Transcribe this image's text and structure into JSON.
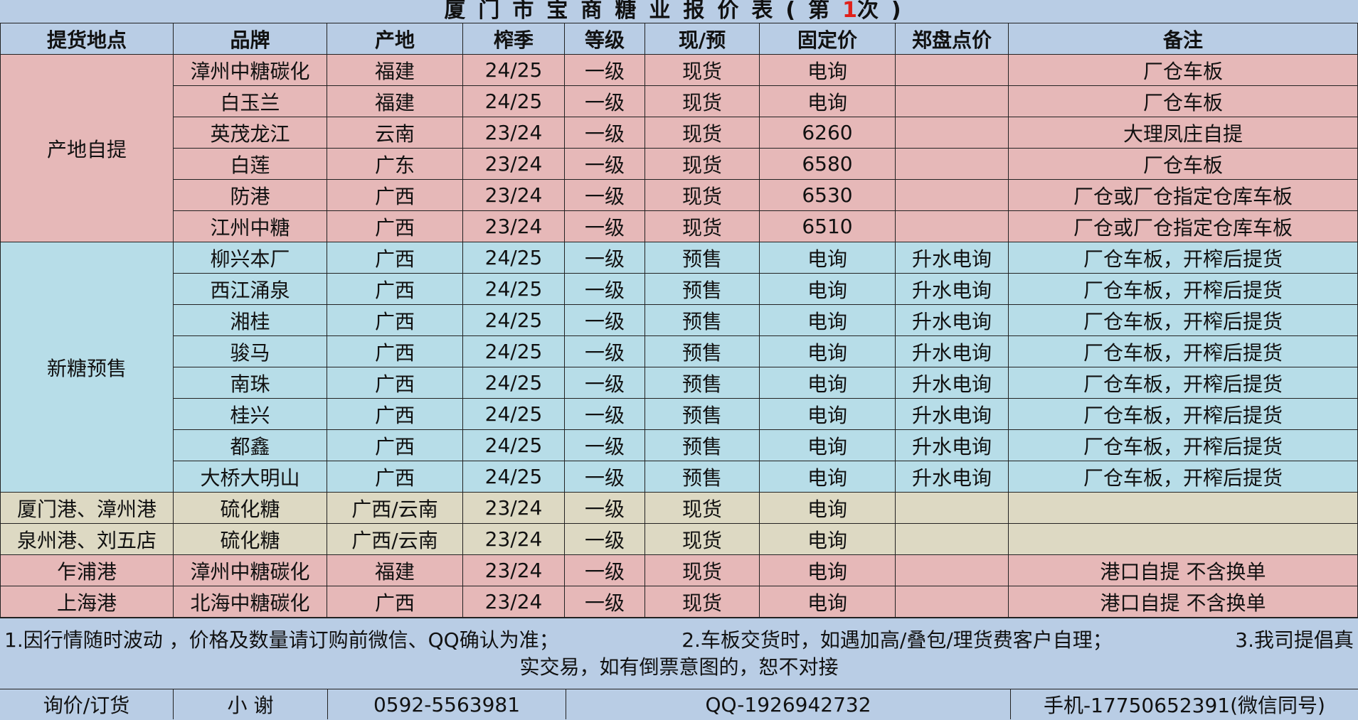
{
  "title": {
    "prefix": "厦门市宝商糖业报价表(第",
    "number": "1",
    "suffix": "次)",
    "number_color": "#e0201a"
  },
  "headers": [
    "提货地点",
    "品牌",
    "产地",
    "榨季",
    "等级",
    "现/预",
    "固定价",
    "郑盘点价",
    "备注"
  ],
  "groups": [
    {
      "location": "产地自提",
      "color": "pink",
      "rows": [
        [
          "漳州中糖碳化",
          "福建",
          "24/25",
          "一级",
          "现货",
          "电询",
          "",
          "厂仓车板"
        ],
        [
          "白玉兰",
          "福建",
          "24/25",
          "一级",
          "现货",
          "电询",
          "",
          "厂仓车板"
        ],
        [
          "英茂龙江",
          "云南",
          "23/24",
          "一级",
          "现货",
          "6260",
          "",
          "大理凤庄自提"
        ],
        [
          "白莲",
          "广东",
          "23/24",
          "一级",
          "现货",
          "6580",
          "",
          "厂仓车板"
        ],
        [
          "防港",
          "广西",
          "23/24",
          "一级",
          "现货",
          "6530",
          "",
          "厂仓或厂仓指定仓库车板"
        ],
        [
          "江州中糖",
          "广西",
          "23/24",
          "一级",
          "现货",
          "6510",
          "",
          "厂仓或厂仓指定仓库车板"
        ]
      ]
    },
    {
      "location": "新糖预售",
      "color": "blue",
      "rows": [
        [
          "柳兴本厂",
          "广西",
          "24/25",
          "一级",
          "预售",
          "电询",
          "升水电询",
          "厂仓车板，开榨后提货"
        ],
        [
          "西江涌泉",
          "广西",
          "24/25",
          "一级",
          "预售",
          "电询",
          "升水电询",
          "厂仓车板，开榨后提货"
        ],
        [
          "湘桂",
          "广西",
          "24/25",
          "一级",
          "预售",
          "电询",
          "升水电询",
          "厂仓车板，开榨后提货"
        ],
        [
          "骏马",
          "广西",
          "24/25",
          "一级",
          "预售",
          "电询",
          "升水电询",
          "厂仓车板，开榨后提货"
        ],
        [
          "南珠",
          "广西",
          "24/25",
          "一级",
          "预售",
          "电询",
          "升水电询",
          "厂仓车板，开榨后提货"
        ],
        [
          "桂兴",
          "广西",
          "24/25",
          "一级",
          "预售",
          "电询",
          "升水电询",
          "厂仓车板，开榨后提货"
        ],
        [
          "都鑫",
          "广西",
          "24/25",
          "一级",
          "预售",
          "电询",
          "升水电询",
          "厂仓车板，开榨后提货"
        ],
        [
          "大桥大明山",
          "广西",
          "24/25",
          "一级",
          "预售",
          "电询",
          "升水电询",
          "厂仓车板，开榨后提货"
        ]
      ]
    },
    {
      "location": "厦门港、漳州港",
      "color": "beige",
      "rows": [
        [
          "硫化糖",
          "广西/云南",
          "23/24",
          "一级",
          "现货",
          "电询",
          "",
          ""
        ]
      ]
    },
    {
      "location": "泉州港、刘五店",
      "color": "beige",
      "rows": [
        [
          "硫化糖",
          "广西/云南",
          "23/24",
          "一级",
          "现货",
          "电询",
          "",
          ""
        ]
      ]
    },
    {
      "location": "乍浦港",
      "color": "pink",
      "rows": [
        [
          "漳州中糖碳化",
          "福建",
          "23/24",
          "一级",
          "现货",
          "电询",
          "",
          "港口自提 不含换单"
        ]
      ]
    },
    {
      "location": "上海港",
      "color": "pink",
      "rows": [
        [
          "北海中糖碳化",
          "广西",
          "23/24",
          "一级",
          "现货",
          "电询",
          "",
          "港口自提 不含换单"
        ]
      ]
    }
  ],
  "notes": {
    "n1": "1.因行情随时波动 ，价格及数量请订购前微信、QQ确认为准；",
    "n2": "2.车板交货时，如遇加高/叠包/理货费客户自理；",
    "n3": "3.我司提倡真",
    "n3b": "实交易，如有倒票意图的，恕不对接"
  },
  "footer": {
    "label": "询价/订货",
    "contact": "小 谢",
    "phone": "0592-5563981",
    "qq": "QQ-1926942732",
    "mobile": "手机-17750652391(微信同号)"
  }
}
